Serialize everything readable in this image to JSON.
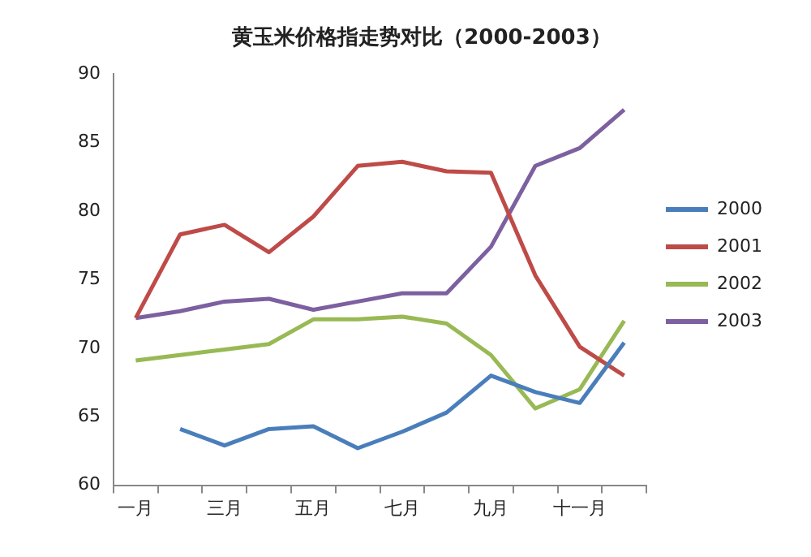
{
  "chart_data": {
    "type": "line",
    "title": "黄玉米价格指走势对比（2000-2003）",
    "categories": [
      "一月",
      null,
      "三月",
      null,
      "五月",
      null,
      "七月",
      null,
      "九月",
      null,
      "十一月",
      null
    ],
    "series": [
      {
        "name": "2000",
        "color": "#4a7ebb",
        "values": [
          null,
          64.1,
          62.9,
          64.1,
          64.3,
          62.7,
          63.9,
          65.3,
          68.0,
          66.8,
          66.0,
          70.4
        ]
      },
      {
        "name": "2001",
        "color": "#be4b48",
        "values": [
          72.2,
          78.3,
          79.0,
          77.0,
          79.6,
          83.3,
          83.6,
          82.9,
          82.8,
          75.3,
          70.1,
          68.0
        ]
      },
      {
        "name": "2002",
        "color": "#98b954",
        "values": [
          69.1,
          69.5,
          69.9,
          70.3,
          72.1,
          72.1,
          72.3,
          71.8,
          69.5,
          65.6,
          67.0,
          72.0
        ]
      },
      {
        "name": "2003",
        "color": "#7d60a0",
        "values": [
          72.2,
          72.7,
          73.4,
          73.6,
          72.8,
          73.4,
          74.0,
          74.0,
          77.4,
          83.3,
          84.6,
          87.4
        ]
      }
    ],
    "ylim": [
      60,
      90
    ],
    "yticks": [
      60,
      65,
      70,
      75,
      80,
      85,
      90
    ],
    "grid": false,
    "legend": "right",
    "marker": "none",
    "line_style": "solid"
  }
}
